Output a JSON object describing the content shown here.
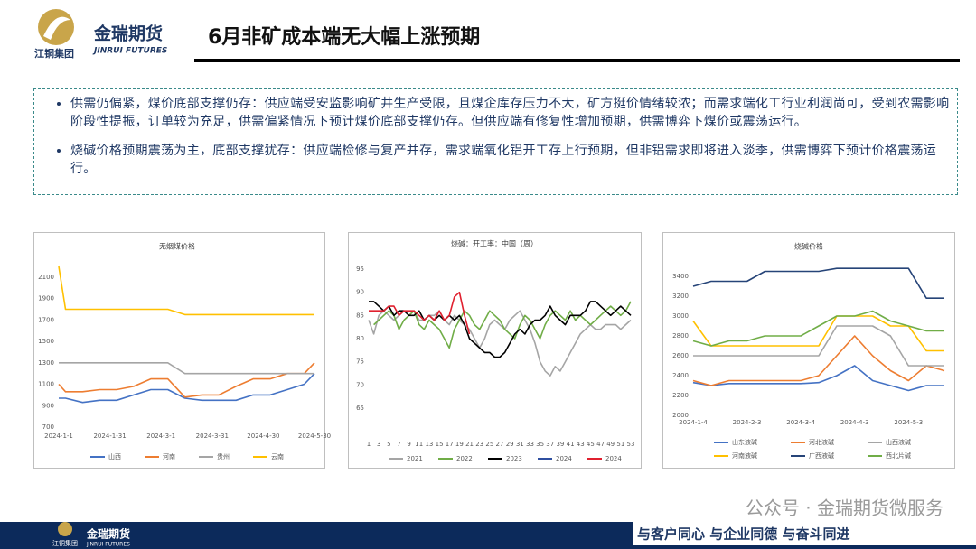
{
  "header": {
    "logo_cn": "金瑞期货",
    "logo_en": "JINRUI FUTURES",
    "group": "江铜集团",
    "title": "6月非矿成本端无大幅上涨预期"
  },
  "bullets": [
    "供需仍偏紧，煤价底部支撑仍存：供应端受安监影响矿井生产受限，且煤企库存压力不大，矿方挺价情绪较浓；而需求端化工行业利润尚可，受到农需影响阶段性提振，订单较为充足，供需偏紧情况下预计煤价底部支撑仍存。但供应端有修复性增加预期，供需博弈下煤价或震荡运行。",
    "烧碱价格预期震荡为主，底部支撑犹存：供应端检修与复产并存，需求端氧化铝开工存上行预期，但非铝需求即将进入淡季，供需博弈下预计价格震荡运行。"
  ],
  "chart_data": [
    {
      "type": "line",
      "title": "无烟煤价格",
      "x": [
        "2024-1-1",
        "2024-1-5",
        "2024-1-15",
        "2024-1-25",
        "2024-2-4",
        "2024-2-14",
        "2024-2-24",
        "2024-3-5",
        "2024-3-15",
        "2024-3-25",
        "2024-4-4",
        "2024-4-14",
        "2024-4-24",
        "2024-5-4",
        "2024-5-14",
        "2024-5-24",
        "2024-5-30"
      ],
      "xticks": [
        "2024-1-1",
        "2024-1-31",
        "2024-3-1",
        "2024-3-31",
        "2024-4-30",
        "2024-5-30"
      ],
      "ylim": [
        700,
        2200
      ],
      "yticks": [
        700,
        900,
        1100,
        1300,
        1500,
        1700,
        1900,
        2100
      ],
      "series": [
        {
          "name": "山西",
          "color": "#4472c4",
          "values": [
            970,
            970,
            930,
            950,
            950,
            1000,
            1050,
            1050,
            970,
            950,
            950,
            950,
            1000,
            1000,
            1050,
            1100,
            1200
          ]
        },
        {
          "name": "河南",
          "color": "#ed7d31",
          "values": [
            1100,
            1030,
            1030,
            1050,
            1050,
            1080,
            1150,
            1150,
            980,
            1000,
            1000,
            1080,
            1150,
            1150,
            1200,
            1200,
            1300
          ]
        },
        {
          "name": "贵州",
          "color": "#a5a5a5",
          "values": [
            1300,
            1300,
            1300,
            1300,
            1300,
            1300,
            1300,
            1300,
            1200,
            1200,
            1200,
            1200,
            1200,
            1200,
            1200,
            1200,
            1200
          ]
        },
        {
          "name": "云南",
          "color": "#ffc000",
          "values": [
            2200,
            1800,
            1800,
            1800,
            1800,
            1800,
            1800,
            1800,
            1750,
            1750,
            1750,
            1750,
            1750,
            1750,
            1750,
            1750,
            1750
          ]
        }
      ]
    },
    {
      "type": "line",
      "title": "烧碱：开工率：中国（周）",
      "categories": [
        1,
        null,
        3,
        null,
        5,
        null,
        7,
        null,
        9,
        null,
        11,
        null,
        13,
        null,
        15,
        null,
        17,
        null,
        19,
        null,
        21,
        null,
        23,
        null,
        25,
        null,
        27,
        null,
        29,
        null,
        31,
        null,
        33,
        null,
        35,
        null,
        37,
        null,
        39,
        null,
        41,
        null,
        43,
        null,
        45,
        null,
        47,
        null,
        49,
        null,
        51,
        null,
        53
      ],
      "ylim": [
        65,
        95
      ],
      "yticks": [
        65,
        70,
        75,
        80,
        85,
        90,
        95
      ],
      "series": [
        {
          "name": "2021",
          "color": "#a5a5a5",
          "values": [
            84,
            81,
            85,
            86,
            85,
            84,
            85,
            86,
            85,
            86,
            84,
            84,
            85,
            85,
            86,
            84,
            83,
            85,
            84,
            83,
            82,
            80,
            78,
            80,
            83,
            84,
            83,
            82,
            84,
            85,
            86,
            84,
            82,
            79,
            75,
            73,
            72,
            74,
            73,
            75,
            77,
            79,
            81,
            82,
            83,
            82,
            82,
            83,
            83,
            83,
            82,
            83,
            84
          ]
        },
        {
          "name": "2022",
          "color": "#70ad47",
          "values": [
            null,
            83,
            84,
            85,
            86,
            85,
            82,
            84,
            85,
            86,
            83,
            82,
            84,
            83,
            82,
            80,
            78,
            82,
            84,
            86,
            85,
            83,
            82,
            84,
            86,
            85,
            84,
            82,
            81,
            80,
            83,
            85,
            84,
            82,
            80,
            83,
            85,
            86,
            85,
            84,
            86,
            84,
            85,
            84,
            83,
            84,
            85,
            86,
            87,
            86,
            85,
            86,
            88
          ]
        },
        {
          "name": "2023",
          "color": "#000000",
          "values": [
            88,
            88,
            87,
            86,
            87,
            85,
            86,
            86,
            85,
            85,
            86,
            84,
            85,
            84,
            85,
            84,
            85,
            84,
            85,
            83,
            80,
            79,
            78,
            77,
            77,
            76,
            76,
            77,
            79,
            81,
            82,
            81,
            83,
            84,
            84,
            85,
            87,
            85,
            84,
            83,
            85,
            85,
            85,
            86,
            88,
            88,
            87,
            86,
            85,
            86,
            87,
            86,
            85
          ]
        },
        {
          "name": "2024",
          "color": "#2f4fa0",
          "values": [
            null,
            null,
            null,
            null,
            null,
            null,
            null,
            null,
            null,
            null,
            null,
            null,
            null,
            null,
            null,
            null,
            null,
            null,
            null,
            null,
            null,
            null,
            null,
            null,
            null,
            null,
            null,
            null,
            null,
            null,
            null,
            null,
            null,
            null,
            null,
            null,
            null,
            null,
            null,
            null,
            null,
            null,
            null,
            null,
            null,
            null,
            null,
            null,
            null,
            null,
            null,
            null,
            null
          ]
        },
        {
          "name": "2024",
          "color": "#e0202f",
          "values": [
            86,
            86,
            86,
            86,
            87,
            87,
            85,
            86,
            86,
            86,
            85,
            84,
            85,
            84,
            86,
            84,
            85,
            89,
            90,
            85,
            81,
            null,
            null,
            null,
            null,
            null,
            null,
            null,
            null,
            null,
            null,
            null,
            null,
            null,
            null,
            null,
            null,
            null,
            null,
            null,
            null,
            null,
            null,
            null,
            null,
            null,
            null,
            null,
            null,
            null,
            null,
            null,
            null
          ]
        }
      ]
    },
    {
      "type": "line",
      "title": "烧碱价格",
      "x": [
        "2024-1-4",
        "2024-1-14",
        "2024-1-24",
        "2024-2-3",
        "2024-2-13",
        "2024-2-23",
        "2024-3-4",
        "2024-3-14",
        "2024-3-24",
        "2024-4-3",
        "2024-4-13",
        "2024-4-23",
        "2024-5-3",
        "2024-5-13",
        "2024-5-23"
      ],
      "xticks": [
        "2024-1-4",
        "2024-2-3",
        "2024-3-4",
        "2024-4-3",
        "2024-5-3"
      ],
      "ylim": [
        2000,
        3500
      ],
      "yticks": [
        2000,
        2200,
        2400,
        2600,
        2800,
        3000,
        3200,
        3400
      ],
      "series": [
        {
          "name": "山东液碱",
          "color": "#4472c4",
          "values": [
            2330,
            2300,
            2320,
            2320,
            2320,
            2320,
            2320,
            2330,
            2400,
            2500,
            2350,
            2300,
            2250,
            2300,
            2300
          ]
        },
        {
          "name": "河北液碱",
          "color": "#ed7d31",
          "values": [
            2350,
            2300,
            2350,
            2350,
            2350,
            2350,
            2350,
            2400,
            2600,
            2800,
            2600,
            2450,
            2350,
            2500,
            2450
          ]
        },
        {
          "name": "山西液碱",
          "color": "#a5a5a5",
          "values": [
            2600,
            2600,
            2600,
            2600,
            2600,
            2600,
            2600,
            2600,
            2900,
            2900,
            2900,
            2800,
            2500,
            2500,
            2500
          ]
        },
        {
          "name": "河南液碱",
          "color": "#ffc000",
          "values": [
            2950,
            2700,
            2700,
            2700,
            2700,
            2700,
            2700,
            2700,
            3000,
            3000,
            3000,
            2900,
            2900,
            2650,
            2650
          ]
        },
        {
          "name": "广西液碱",
          "color": "#264478",
          "values": [
            3300,
            3350,
            3350,
            3350,
            3450,
            3450,
            3450,
            3450,
            3480,
            3480,
            3480,
            3480,
            3480,
            3180,
            3180
          ]
        },
        {
          "name": "西北片碱",
          "color": "#70ad47",
          "values": [
            2750,
            2700,
            2750,
            2750,
            2800,
            2800,
            2800,
            2900,
            3000,
            3000,
            3050,
            2950,
            2900,
            2850,
            2850
          ]
        }
      ]
    }
  ],
  "footer": {
    "watermark": "公众号 · 金瑞期货微服务",
    "slogan": "与客户同心 与企业同德 与奋斗同进",
    "logo_cn": "金瑞期货",
    "logo_en": "JINRUI FUTURES",
    "group": "江铜集团"
  }
}
